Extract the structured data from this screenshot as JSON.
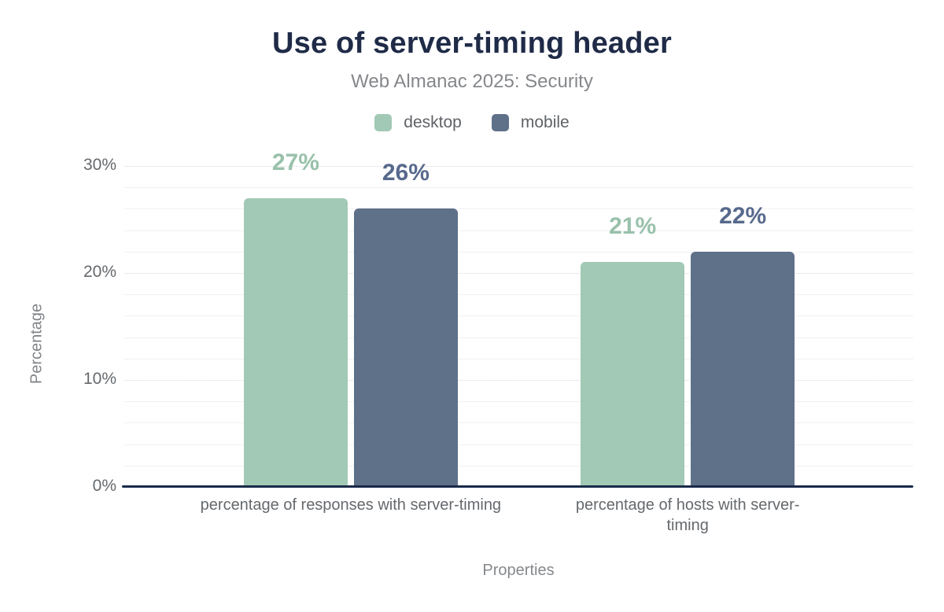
{
  "chart_data": {
    "type": "bar",
    "title": "Use of server-timing header",
    "subtitle": "Web Almanac 2025: Security",
    "categories": [
      "percentage of responses with server-timing",
      "percentage of hosts with server-timing"
    ],
    "series": [
      {
        "name": "desktop",
        "values": [
          27,
          21
        ],
        "color": "#a2c9b5",
        "label_color": "#99c1ab"
      },
      {
        "name": "mobile",
        "values": [
          26,
          22
        ],
        "color": "#5e7189",
        "label_color": "#57698c"
      }
    ],
    "value_suffix": "%",
    "xlabel": "Properties",
    "ylabel": "Percentage",
    "ylim": [
      0,
      30
    ],
    "yticks": [
      0,
      10,
      20,
      30
    ],
    "ytick_suffix": "%",
    "grid": true,
    "legend_position": "top"
  },
  "theme": {
    "title_color": "#1f2b47",
    "subtitle_color": "#85878b",
    "axis_line_color": "#1a2a4a",
    "tick_label_color": "#65696d"
  }
}
